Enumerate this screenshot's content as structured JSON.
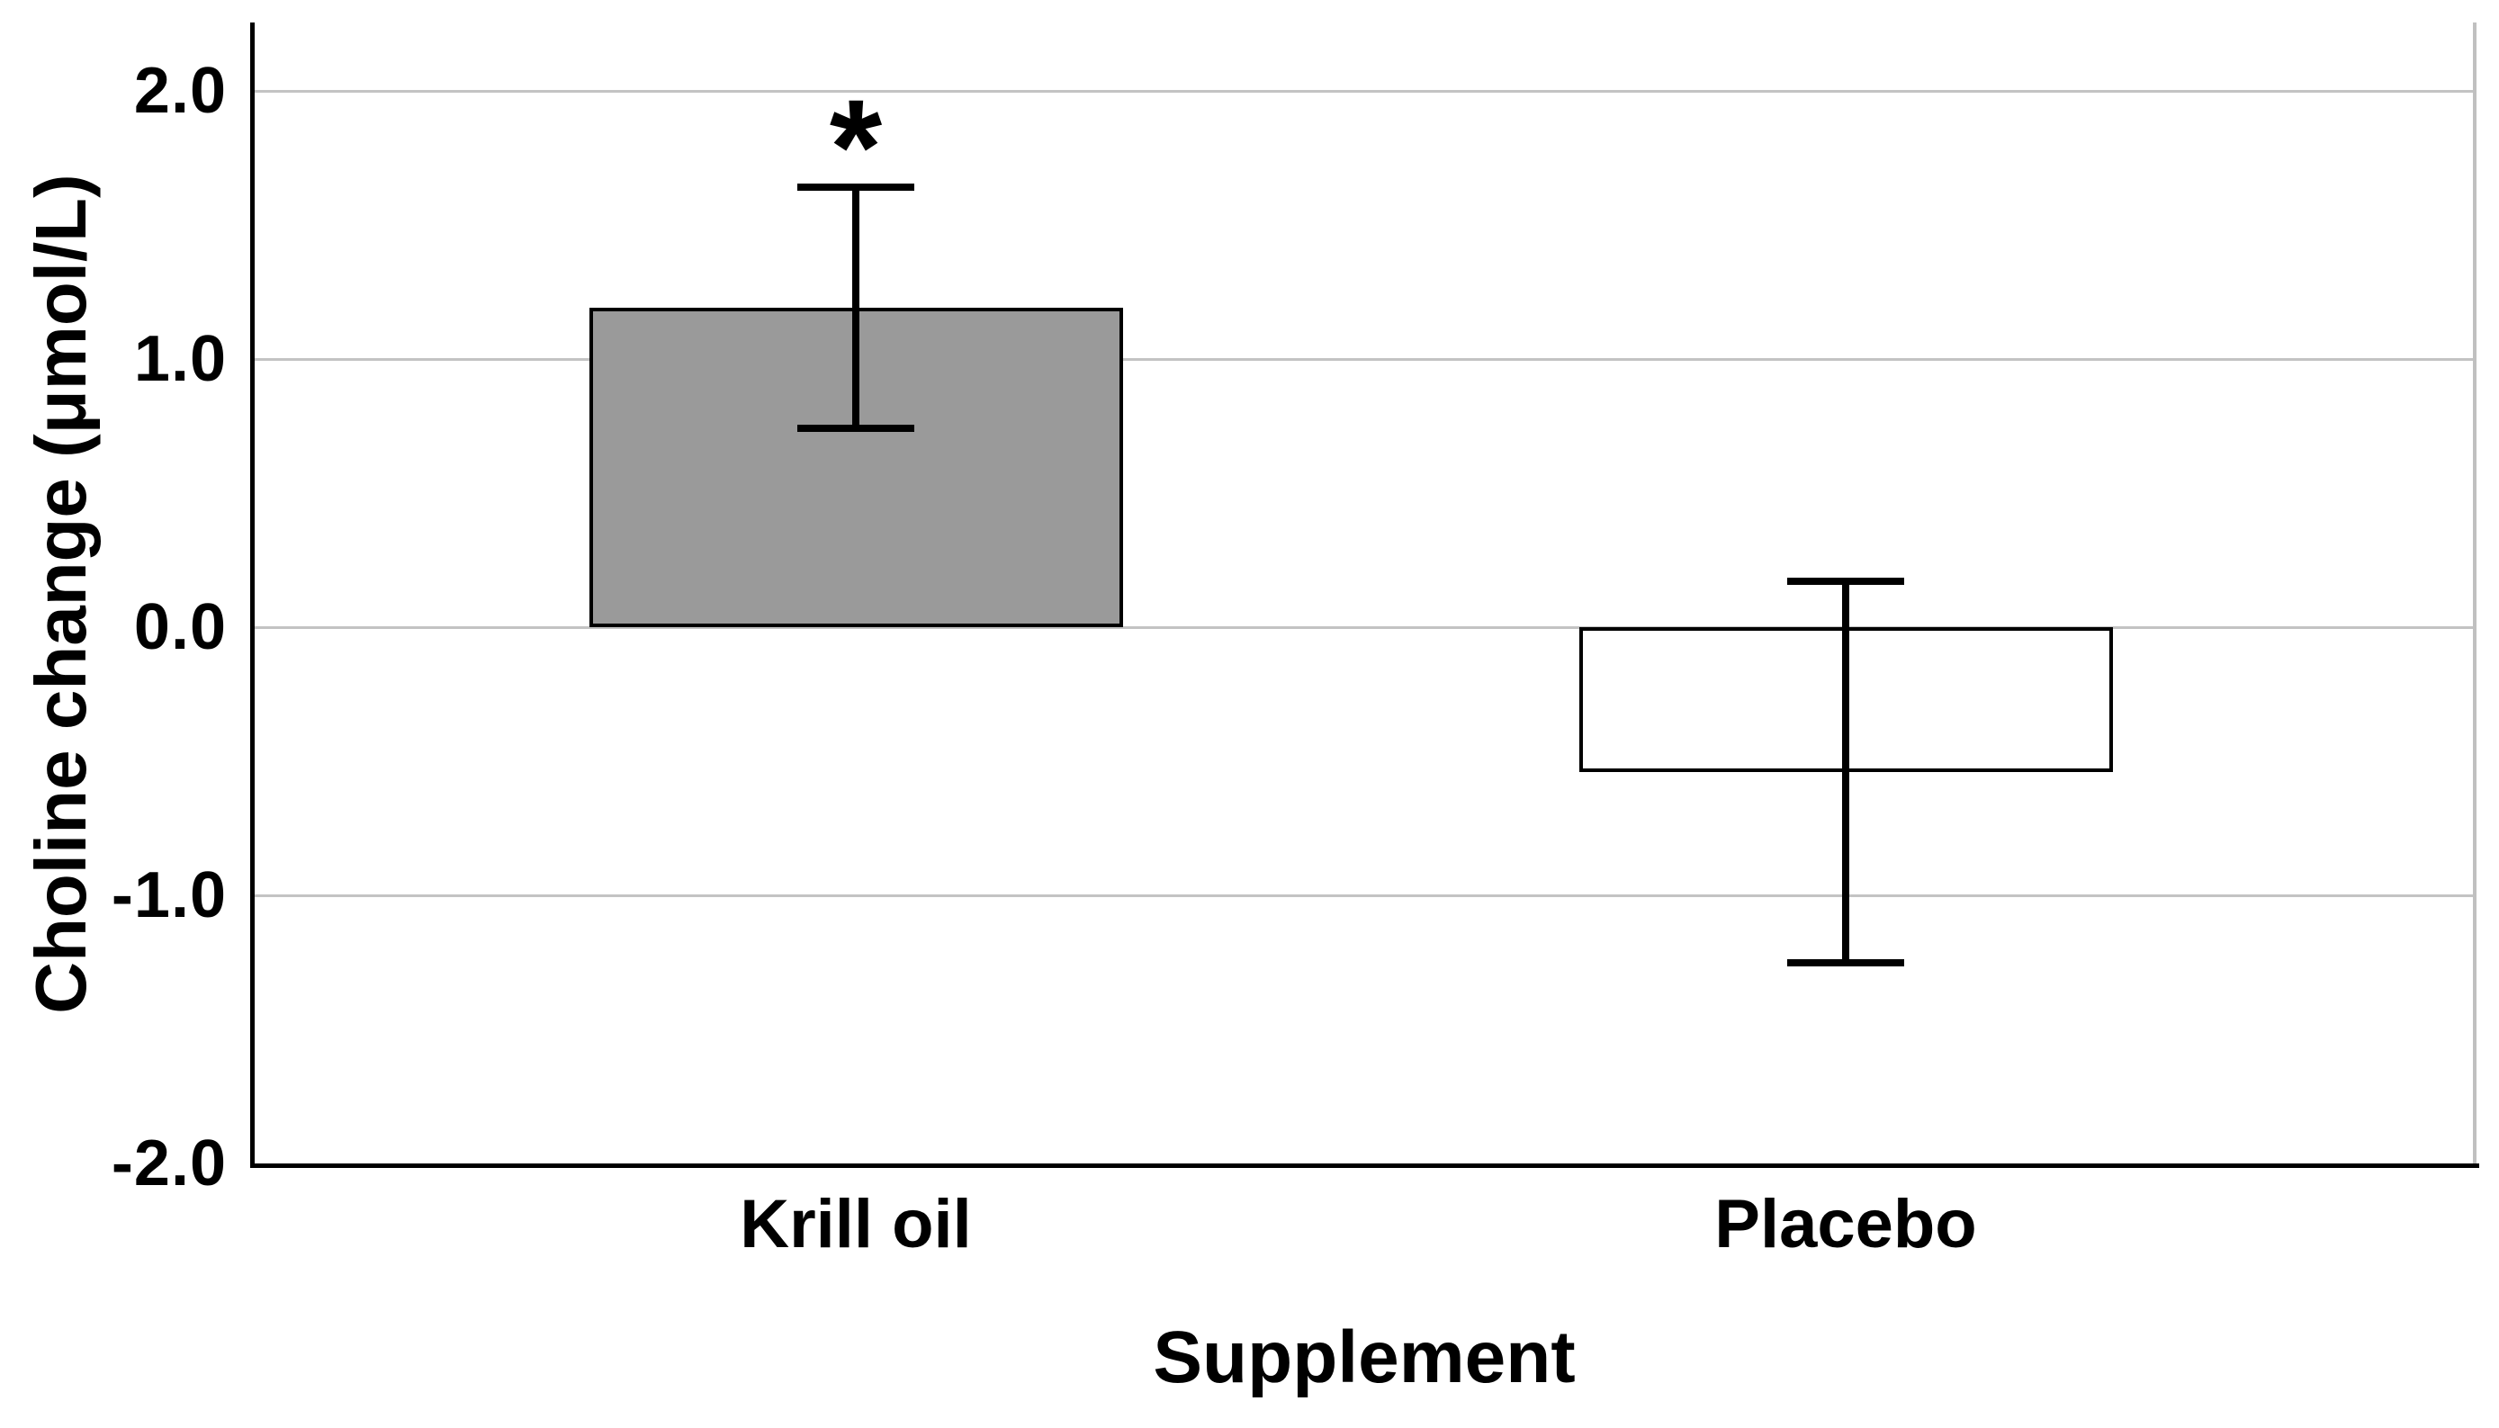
{
  "chart_data": {
    "type": "bar",
    "title": "",
    "xlabel": "Supplement",
    "ylabel": "Choline change (μmol/L)",
    "ylim": [
      -2.0,
      2.25
    ],
    "grid": "horizontal",
    "legend": "none",
    "yticks": [
      {
        "label": "2.0",
        "value": 2.0
      },
      {
        "label": "1.0",
        "value": 1.0
      },
      {
        "label": "0.0",
        "value": 0.0
      },
      {
        "label": "-1.0",
        "value": -1.0
      },
      {
        "label": "-2.0",
        "value": -2.0
      }
    ],
    "bars": [
      {
        "category": "Krill oil",
        "value": 1.19,
        "error_low": 0.74,
        "error_high": 1.64,
        "fill": "#9a9a9a",
        "annotation": "*"
      },
      {
        "category": "Placebo",
        "value": -0.54,
        "error_low": -1.25,
        "error_high": 0.17,
        "fill": "#ffffff",
        "annotation": ""
      }
    ],
    "colors": {
      "bar_border": "#000000",
      "error_bar": "#000000",
      "gridline": "#c3c3c3",
      "axis": "#000000",
      "plot_right_border": "#c0c0c0",
      "background": "#ffffff",
      "text": "#000000"
    }
  }
}
